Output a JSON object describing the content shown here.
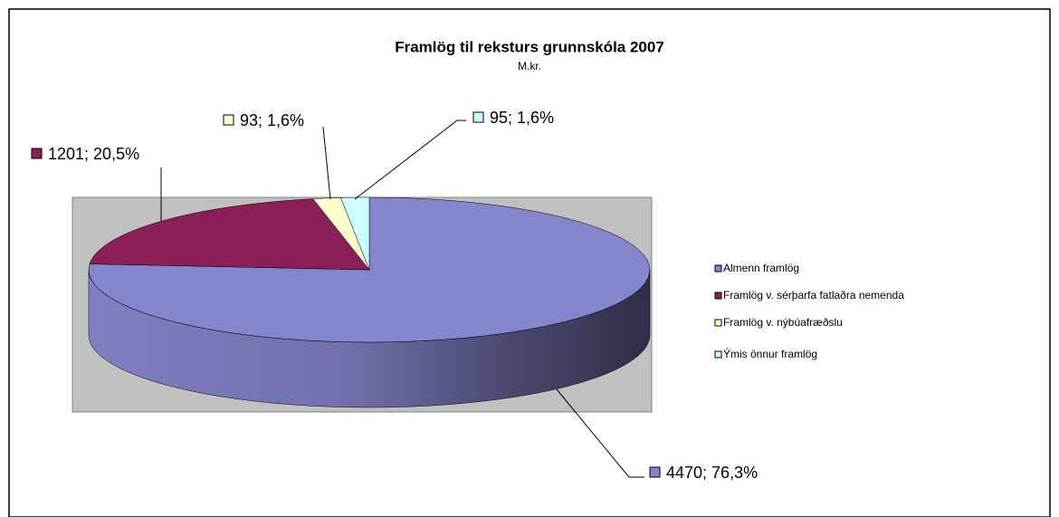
{
  "chart_data": {
    "type": "pie3d",
    "title": "Framlög til reksturs grunnskóla 2007",
    "subtitle": "M.kr.",
    "categories": [
      "Almenn framlög",
      "Framlög v. sérþarfa fatlaðra nemenda",
      "Framlög v. nýbúafræðslu",
      "Ýmis önnur framlög"
    ],
    "values": [
      4470,
      1201,
      93,
      95
    ],
    "value_labels": [
      "4470; 76,3%",
      "1201; 20,5%",
      "93; 1,6%",
      "95; 1,6%"
    ],
    "colors": [
      "#8585cc",
      "#8b1f57",
      "#ffffcc",
      "#ccffff"
    ],
    "legend": "right"
  }
}
